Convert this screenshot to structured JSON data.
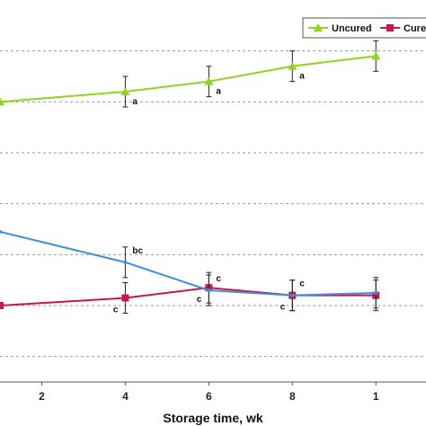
{
  "chart_data": {
    "type": "line",
    "xlabel": "Storage time, wk",
    "ylabel": "",
    "title": "",
    "x_ticks": [
      2,
      4,
      6,
      8,
      "1"
    ],
    "xlim": [
      1,
      11.2
    ],
    "ylim": [
      0,
      7.5
    ],
    "grid_y": [
      0.5,
      1.5,
      2.5,
      3.5,
      4.5,
      5.5,
      6.5
    ],
    "legend": {
      "placement": "top-right"
    },
    "series": [
      {
        "name": "Uncured",
        "color": "#8fd31e",
        "marker": "triangle",
        "x": [
          1,
          4,
          6,
          8,
          10
        ],
        "y": [
          5.5,
          5.7,
          5.9,
          6.2,
          6.4
        ],
        "err": [
          null,
          0.3,
          0.3,
          0.3,
          0.3
        ],
        "labels": [
          "",
          "a",
          "a",
          "a",
          ""
        ]
      },
      {
        "name": "Cure",
        "color": "#c8174a",
        "marker": "square",
        "x": [
          1,
          4,
          6,
          8,
          10
        ],
        "y": [
          1.5,
          1.65,
          1.85,
          1.7,
          1.7
        ],
        "err": [
          null,
          0.3,
          0.3,
          0.3,
          0.3
        ],
        "labels": [
          "",
          "c",
          "c",
          "c",
          ""
        ]
      },
      {
        "name": "",
        "color": "#3f8fd8",
        "marker": "none",
        "x": [
          1,
          4,
          6,
          8,
          10
        ],
        "y": [
          2.95,
          2.35,
          1.8,
          1.7,
          1.75
        ],
        "err": [
          null,
          0.3,
          0.3,
          0.3,
          0.3
        ],
        "labels": [
          "",
          "bc",
          "c",
          "c",
          ""
        ]
      }
    ]
  }
}
